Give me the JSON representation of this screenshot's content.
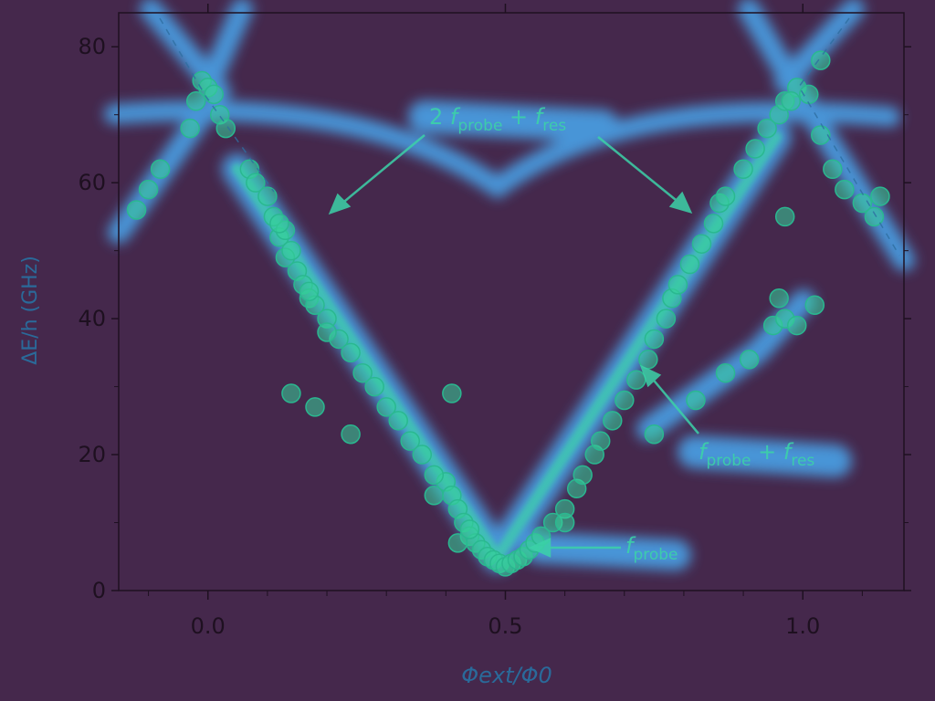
{
  "chart_data": {
    "type": "scatter",
    "xlabel": "Φext/Φ0",
    "ylabel": "ΔE/h (GHz)",
    "xlim": [
      -0.15,
      1.17
    ],
    "ylim": [
      0,
      85
    ],
    "x_ticks": [
      "0.0",
      "0.5",
      "1.0"
    ],
    "y_ticks": [
      "0",
      "20",
      "40",
      "60",
      "80"
    ],
    "grid": false,
    "colors": {
      "background": "#45284c",
      "axes": "#1e1020",
      "glow": "#4aa8f0",
      "core": "#3cd2a8",
      "points": "#36cf9a",
      "annotation": "#3cd2a8"
    },
    "annotations": [
      {
        "name": "2fprobe_plus_fres",
        "pre": "2 ",
        "main": "f",
        "sub": "probe",
        "mid": " + ",
        "main2": "f",
        "sub2": "res"
      },
      {
        "name": "fprobe_plus_fres",
        "pre": "",
        "main": "f",
        "sub": "probe",
        "mid": " + ",
        "main2": "f",
        "sub2": "res"
      },
      {
        "name": "fprobe",
        "pre": "",
        "main": "f",
        "sub": "probe",
        "mid": "",
        "main2": "",
        "sub2": ""
      }
    ],
    "series": [
      {
        "values": [
          [
            0.38,
            14
          ],
          [
            0.4,
            16
          ],
          [
            0.41,
            14
          ],
          [
            0.42,
            12
          ],
          [
            0.43,
            10
          ],
          [
            0.44,
            8
          ],
          [
            0.45,
            7
          ],
          [
            0.46,
            6
          ],
          [
            0.47,
            5
          ],
          [
            0.48,
            4.5
          ],
          [
            0.49,
            4
          ],
          [
            0.5,
            3.5
          ],
          [
            0.51,
            4
          ],
          [
            0.52,
            4.5
          ],
          [
            0.53,
            5
          ],
          [
            0.54,
            6
          ],
          [
            0.55,
            7
          ],
          [
            0.56,
            8
          ],
          [
            0.58,
            10
          ],
          [
            0.6,
            12
          ],
          [
            0.62,
            15
          ],
          [
            0.63,
            17
          ]
        ]
      },
      {
        "values": [
          [
            0.07,
            62
          ],
          [
            0.08,
            60
          ],
          [
            0.1,
            58
          ],
          [
            0.11,
            55
          ],
          [
            0.12,
            52
          ],
          [
            0.13,
            49
          ],
          [
            0.15,
            47
          ],
          [
            0.16,
            45
          ],
          [
            0.17,
            43
          ],
          [
            0.18,
            42
          ],
          [
            0.2,
            40
          ],
          [
            0.22,
            37
          ],
          [
            0.24,
            35
          ],
          [
            0.26,
            32
          ],
          [
            0.28,
            30
          ],
          [
            0.3,
            27
          ],
          [
            0.32,
            25
          ],
          [
            0.34,
            22
          ],
          [
            0.36,
            20
          ],
          [
            0.38,
            17
          ],
          [
            0.2,
            38
          ],
          [
            0.17,
            44
          ],
          [
            0.13,
            53
          ],
          [
            0.14,
            50
          ],
          [
            0.12,
            54
          ]
        ]
      },
      {
        "values": [
          [
            0.65,
            20
          ],
          [
            0.66,
            22
          ],
          [
            0.68,
            25
          ],
          [
            0.7,
            28
          ],
          [
            0.72,
            31
          ],
          [
            0.74,
            34
          ],
          [
            0.75,
            37
          ],
          [
            0.77,
            40
          ],
          [
            0.78,
            43
          ],
          [
            0.79,
            45
          ],
          [
            0.81,
            48
          ],
          [
            0.83,
            51
          ],
          [
            0.85,
            54
          ],
          [
            0.86,
            57
          ],
          [
            0.87,
            58
          ],
          [
            0.9,
            62
          ],
          [
            0.92,
            65
          ],
          [
            0.94,
            68
          ],
          [
            0.96,
            70
          ],
          [
            0.97,
            72
          ],
          [
            0.99,
            74
          ],
          [
            1.01,
            73
          ],
          [
            1.03,
            67
          ],
          [
            1.05,
            62
          ],
          [
            1.07,
            59
          ],
          [
            1.1,
            57
          ],
          [
            1.12,
            55
          ],
          [
            1.13,
            58
          ]
        ]
      },
      {
        "values": [
          [
            -0.12,
            56
          ],
          [
            -0.1,
            59
          ],
          [
            -0.08,
            62
          ],
          [
            -0.03,
            68
          ],
          [
            -0.02,
            72
          ],
          [
            -0.01,
            75
          ],
          [
            0.0,
            74
          ],
          [
            0.02,
            70
          ],
          [
            0.03,
            68
          ],
          [
            0.01,
            73
          ]
        ]
      },
      {
        "values": [
          [
            0.14,
            29
          ],
          [
            0.18,
            27
          ],
          [
            0.24,
            23
          ],
          [
            0.41,
            29
          ],
          [
            0.75,
            23
          ],
          [
            0.82,
            28
          ],
          [
            0.87,
            32
          ],
          [
            0.91,
            34
          ],
          [
            0.95,
            39
          ],
          [
            0.97,
            40
          ],
          [
            0.99,
            39
          ],
          [
            1.02,
            42
          ],
          [
            0.96,
            43
          ],
          [
            0.42,
            7
          ],
          [
            0.44,
            9
          ],
          [
            0.6,
            10
          ],
          [
            0.97,
            55
          ],
          [
            1.03,
            78
          ],
          [
            0.98,
            72
          ]
        ]
      }
    ]
  }
}
